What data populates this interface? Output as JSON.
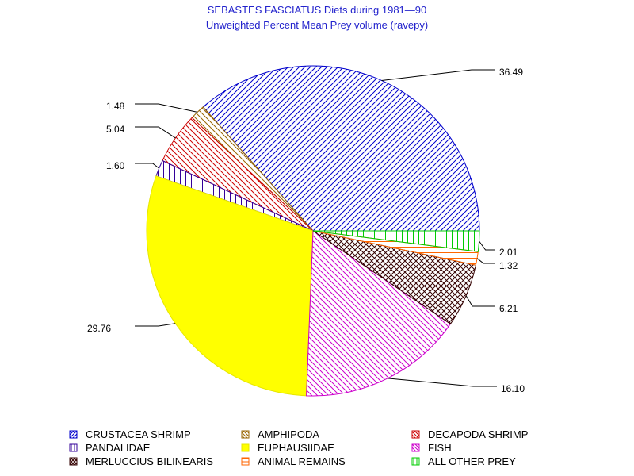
{
  "chart_data": {
    "type": "pie",
    "title": "SEBASTES FASCIATUS Diets during 1981—90",
    "subtitle": "Unweighted Percent Mean Prey volume (ravepy)",
    "slices": [
      {
        "name": "CRUSTACEA SHRIMP",
        "value": 36.49,
        "label": "36.49",
        "color": "#0000cc",
        "pattern": "diag-up"
      },
      {
        "name": "AMPHIPODA",
        "value": 1.48,
        "label": "1.48",
        "color": "#996600",
        "pattern": "diag-down"
      },
      {
        "name": "DECAPODA SHRIMP",
        "value": 5.04,
        "label": "5.04",
        "color": "#cc0000",
        "pattern": "diag-down"
      },
      {
        "name": "PANDALIDAE",
        "value": 1.6,
        "label": "1.60",
        "color": "#330099",
        "pattern": "vertical"
      },
      {
        "name": "EUPHAUSIIDAE",
        "value": 29.76,
        "label": "29.76",
        "color": "#ffff00",
        "pattern": "solid"
      },
      {
        "name": "FISH",
        "value": 16.1,
        "label": "16.10",
        "color": "#cc00cc",
        "pattern": "diag-down"
      },
      {
        "name": "MERLUCCIUS BILINEARIS",
        "value": 6.21,
        "label": "6.21",
        "color": "#330000",
        "pattern": "crosshatch"
      },
      {
        "name": "ANIMAL REMAINS",
        "value": 1.32,
        "label": "1.32",
        "color": "#ff6600",
        "pattern": "horizontal"
      },
      {
        "name": "ALL OTHER PREY",
        "value": 2.01,
        "label": "2.01",
        "color": "#00cc00",
        "pattern": "vertical"
      }
    ],
    "legend_placement": "bottom"
  }
}
